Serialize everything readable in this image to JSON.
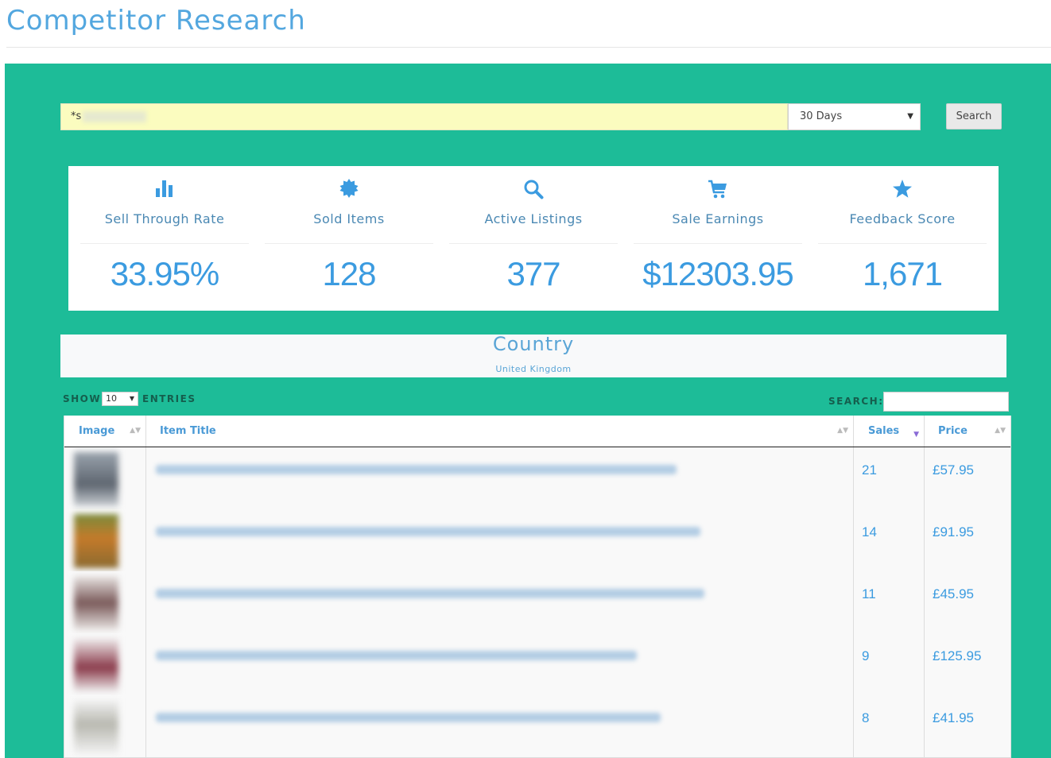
{
  "page": {
    "title": "Competitor Research"
  },
  "search": {
    "query": "*s",
    "period": "30 Days",
    "button_label": "Search"
  },
  "stats": [
    {
      "icon": "bar-chart-icon",
      "label": "Sell Through Rate",
      "value": "33.95%"
    },
    {
      "icon": "badge-icon",
      "label": "Sold Items",
      "value": "128"
    },
    {
      "icon": "search-icon",
      "label": "Active Listings",
      "value": "377"
    },
    {
      "icon": "cart-icon",
      "label": "Sale Earnings",
      "value": "$12303.95"
    },
    {
      "icon": "star-icon",
      "label": "Feedback Score",
      "value": "1,671"
    }
  ],
  "country": {
    "title": "Country",
    "value": "United Kingdom"
  },
  "table_controls": {
    "show_label": "SHOW",
    "length_value": "10",
    "entries_label": "ENTRIES",
    "search_label": "SEARCH:"
  },
  "table": {
    "columns": [
      "Image",
      "Item Title",
      "Sales",
      "Price"
    ],
    "rows": [
      {
        "sales": "21",
        "price": "£57.95"
      },
      {
        "sales": "14",
        "price": "£91.95"
      },
      {
        "sales": "11",
        "price": "£45.95"
      },
      {
        "sales": "9",
        "price": "£125.95"
      },
      {
        "sales": "8",
        "price": "£41.95"
      }
    ]
  },
  "colors": {
    "accent_green": "#1dbc98",
    "title_blue": "#53a7df",
    "value_blue": "#3b9be0"
  }
}
